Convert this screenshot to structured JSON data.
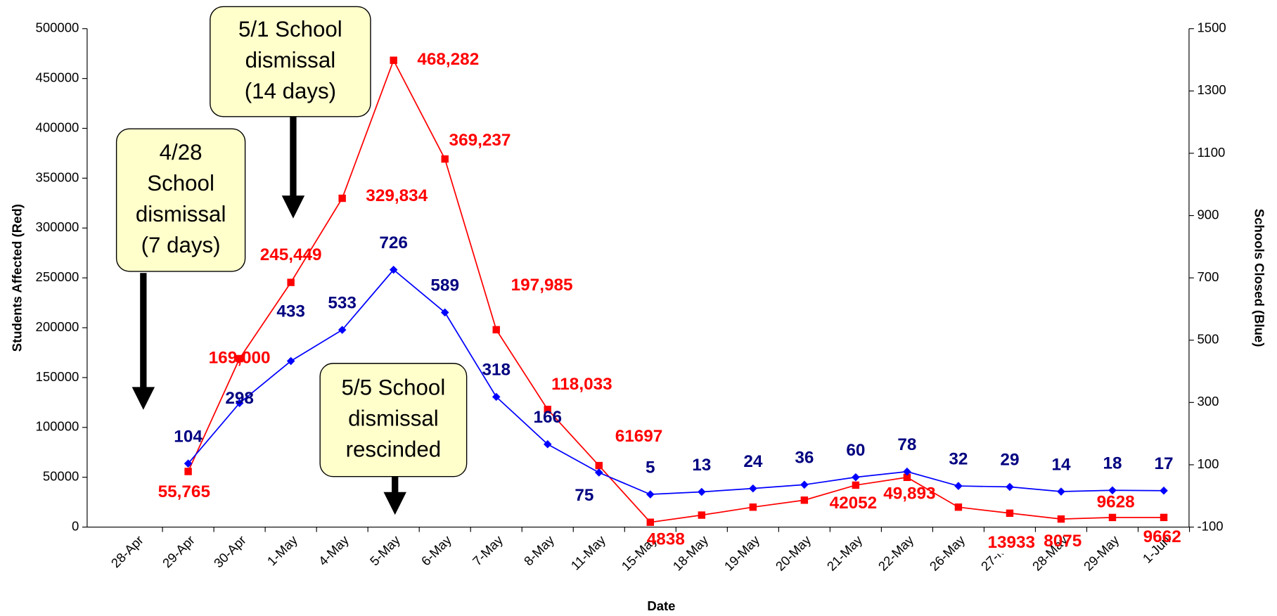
{
  "chart_data": {
    "type": "line",
    "xlabel": "Date",
    "ylabel": "Students Affected (Red)",
    "y2label": "Schools Closed (Blue)",
    "categories": [
      "28-Apr",
      "29-Apr",
      "30-Apr",
      "1-May",
      "4-May",
      "5-May",
      "6-May",
      "7-May",
      "8-May",
      "11-May",
      "15-May",
      "18-May",
      "19-May",
      "20-May",
      "21-May",
      "22-May",
      "26-May",
      "27-May",
      "28-May",
      "29-May",
      "1-Jun"
    ],
    "series": [
      {
        "name": "Students Affected",
        "color": "#ff0000",
        "marker": "square",
        "values": [
          null,
          55765,
          169000,
          245449,
          329834,
          468282,
          369237,
          197985,
          118033,
          61697,
          4838,
          12000,
          20000,
          27000,
          42052,
          49893,
          20000,
          13933,
          8075,
          9628,
          9662
        ],
        "value_labels": [
          null,
          "55,765",
          "169,000",
          "245,449",
          "329,834",
          "468,282",
          "369,237",
          "197,985",
          "118,033",
          "61697",
          "4838",
          null,
          null,
          null,
          "42052",
          "49,893",
          null,
          "13933",
          "8075",
          "9628",
          "9662"
        ],
        "label_color": "#ff0000"
      },
      {
        "name": "Schools Closed",
        "color": "#0000ff",
        "marker": "diamond",
        "axis": "y2",
        "values": [
          null,
          104,
          298,
          433,
          533,
          726,
          589,
          318,
          166,
          75,
          5,
          13,
          24,
          36,
          60,
          78,
          32,
          29,
          14,
          18,
          17
        ],
        "label_color": "#000080"
      }
    ],
    "ylim": [
      0,
      500000
    ],
    "yticks": [
      0,
      50000,
      100000,
      150000,
      200000,
      250000,
      300000,
      350000,
      400000,
      450000,
      500000
    ],
    "y2lim": [
      -100,
      1500
    ],
    "y2ticks": [
      -100,
      100,
      300,
      500,
      700,
      900,
      1100,
      1300,
      1500
    ],
    "grid": false,
    "annotations": [
      {
        "lines": [
          "4/28",
          "School",
          "dismissal",
          "(7 days)"
        ]
      },
      {
        "lines": [
          "5/1 School",
          "dismissal",
          "(14 days)"
        ]
      },
      {
        "lines": [
          "5/5 School",
          "dismissal",
          "rescinded"
        ]
      }
    ]
  }
}
